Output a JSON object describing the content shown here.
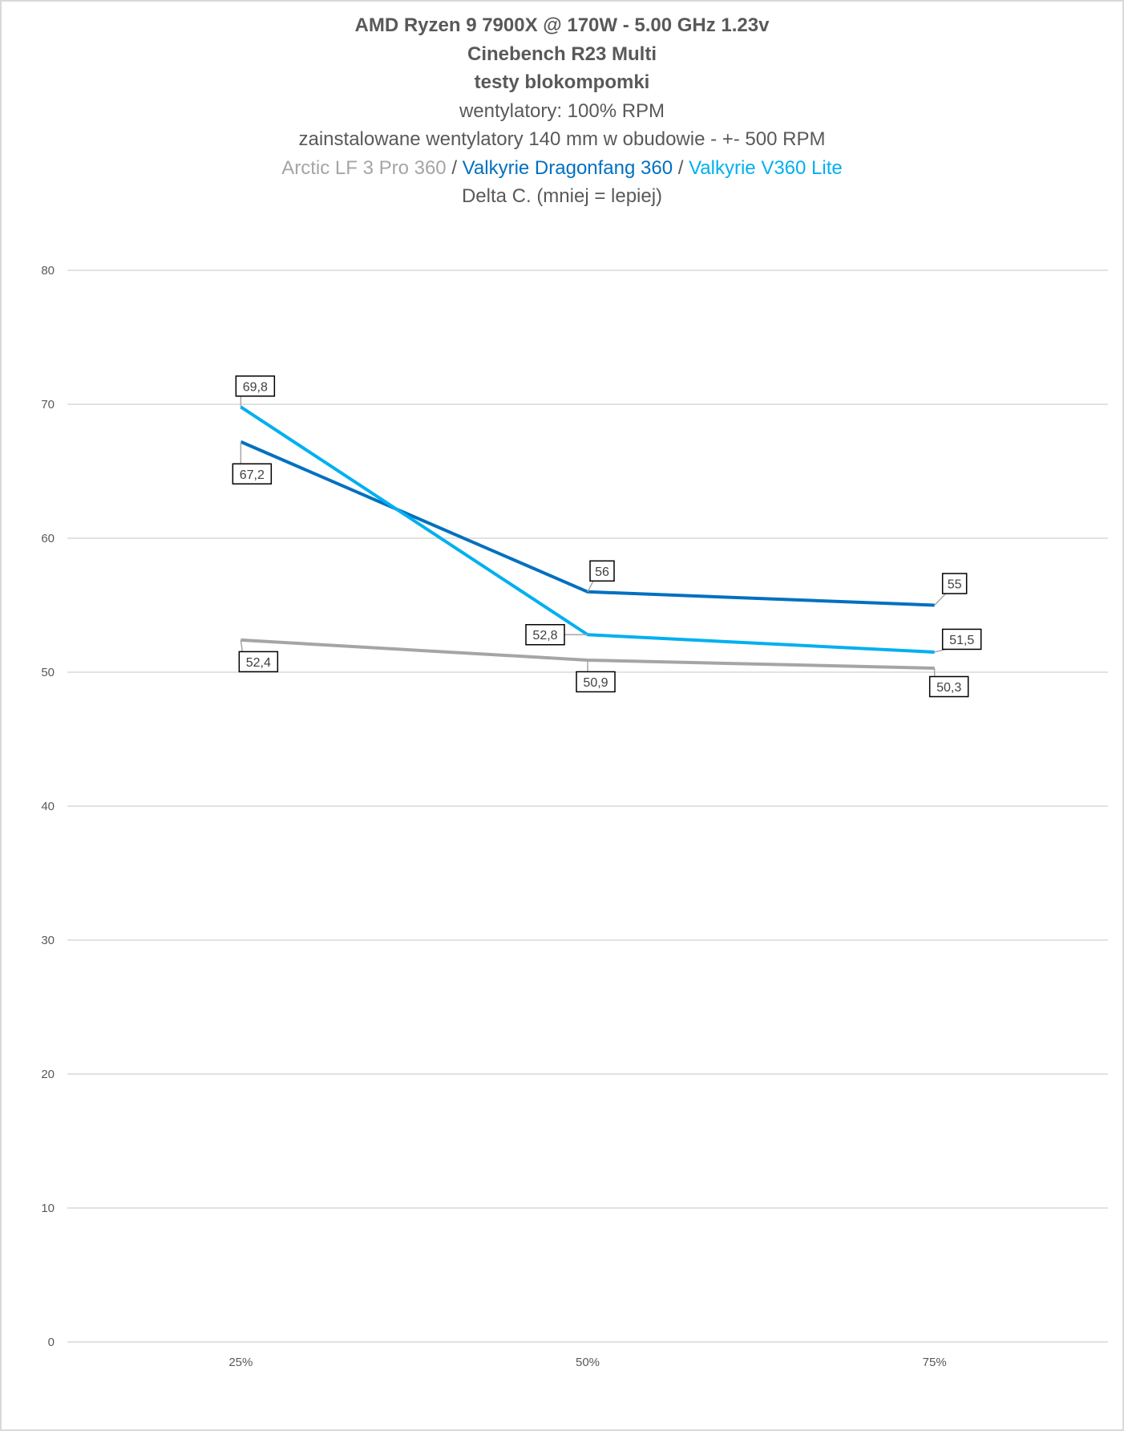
{
  "chart_data": {
    "type": "line",
    "title_lines": [
      "AMD Ryzen 9 7900X @ 170W - 5.00 GHz 1.23v",
      "Cinebench R23 Multi",
      "testy blokompomki",
      "wentylatory: 100% RPM",
      "zainstalowane wentylatory 140 mm w obudowie - +- 500 RPM"
    ],
    "legend_line": {
      "items": [
        "Arctic LF 3 Pro 360",
        "Valkyrie Dragonfang 360",
        "Valkyrie V360 Lite"
      ],
      "separator": " / "
    },
    "subtitle": "Delta C. (mniej = lepiej)",
    "categories": [
      "25%",
      "50%",
      "75%"
    ],
    "xlabel": "",
    "ylabel": "",
    "ylim": [
      0,
      80
    ],
    "yticks": [
      0,
      10,
      20,
      30,
      40,
      50,
      60,
      70,
      80
    ],
    "grid": true,
    "series": [
      {
        "name": "Arctic LF 3 Pro 360",
        "color": "#A5A5A5",
        "values": [
          52.4,
          50.9,
          50.3
        ],
        "labels": [
          "52,4",
          "50,9",
          "50,3"
        ]
      },
      {
        "name": "Valkyrie Dragonfang 360",
        "color": "#0070C0",
        "values": [
          67.2,
          56,
          55
        ],
        "labels": [
          "67,2",
          "56",
          "55"
        ]
      },
      {
        "name": "Valkyrie V360 Lite",
        "color": "#00B0F0",
        "values": [
          69.8,
          52.8,
          51.5
        ],
        "labels": [
          "69,8",
          "52,8",
          "51,5"
        ]
      }
    ]
  }
}
